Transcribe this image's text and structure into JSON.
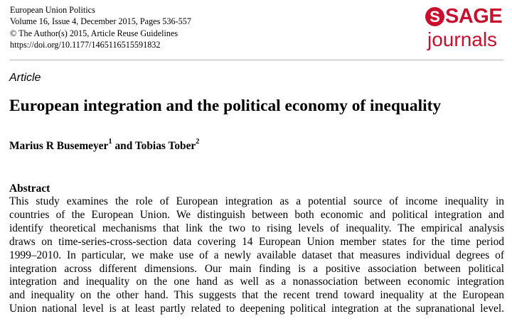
{
  "journal": {
    "name": "European Union Politics",
    "issue": "Volume 16, Issue 4, December 2015, Pages 536-557",
    "copyright": "© The Author(s) 2015, Article Reuse Guidelines",
    "doi": "https://doi.org/10.1177/1465116515591832"
  },
  "logo": {
    "s_letter": "S",
    "sage": "SAGE",
    "journals": "journals",
    "brand_color": "#c8102e"
  },
  "article": {
    "type": "Article",
    "title": "European integration and the political economy of inequality",
    "authors": [
      {
        "name": "Marius R Busemeyer",
        "affiliation": "1"
      },
      {
        "name": "Tobias Tober",
        "affiliation": "2"
      }
    ],
    "author_separator": " and "
  },
  "abstract": {
    "heading": "Abstract",
    "lines": [
      "This study examines the role of European integration as a potential source of income inequality in",
      "countries of the European Union. We distinguish between both economic and political integration and",
      "identify theoretical mechanisms that link the two to rising levels of inequality. The empirical analysis",
      "draws on time-series-cross-section data covering 14 European Union member states for the time period",
      "1999–2010. In particular, we make use of a newly available dataset that measures individual degrees of",
      "integration across different dimensions. Our main finding is a positive association between political",
      "integration and inequality on the one hand as well as a nonassociation between economic integration",
      "and inequality on the other hand. This suggests that the recent trend toward inequality at the European",
      "Union national level is at least partly related to deepening political integration at the supranational level."
    ]
  }
}
